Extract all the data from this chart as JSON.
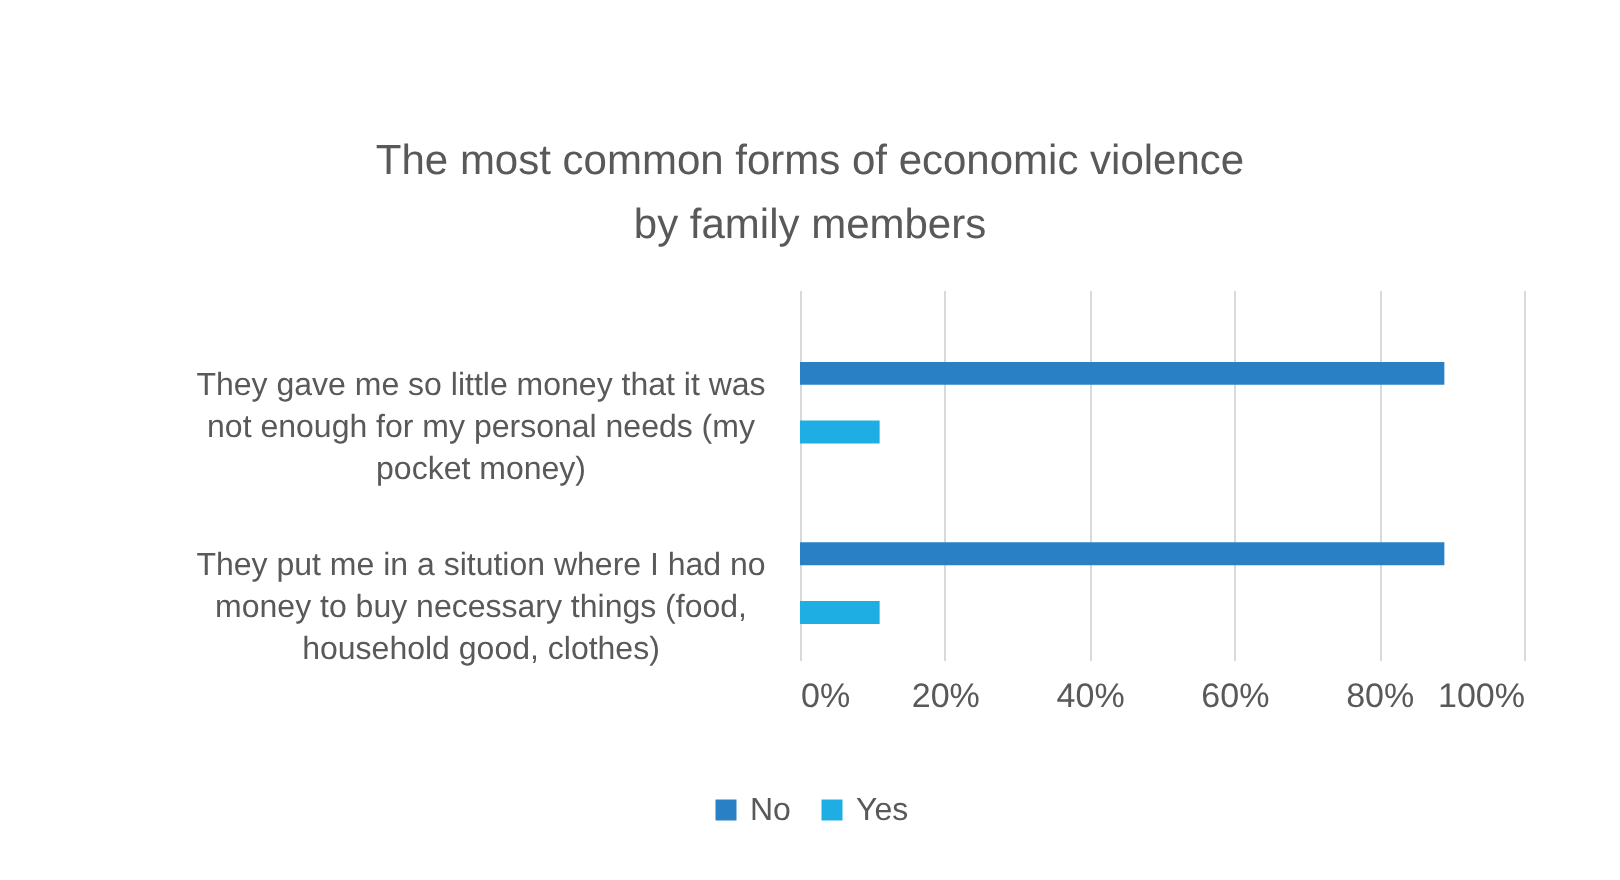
{
  "chart_data": {
    "type": "bar",
    "orientation": "horizontal",
    "title": "The most common forms of economic violence by family members",
    "categories": [
      "They gave me so little money that it was not enough for my personal needs (my pocket money)",
      "They put me in a sitution where I had no money to buy necessary things (food, household good, clothes)"
    ],
    "series": [
      {
        "name": "No",
        "color": "#2980c4",
        "values": [
          89,
          89
        ]
      },
      {
        "name": "Yes",
        "color": "#1eaee3",
        "values": [
          11,
          11
        ]
      }
    ],
    "xlim": [
      0,
      100
    ],
    "xticks": [
      {
        "value": 0,
        "label": "0%"
      },
      {
        "value": 20,
        "label": "20%"
      },
      {
        "value": 40,
        "label": "40%"
      },
      {
        "value": 60,
        "label": "60%"
      },
      {
        "value": 80,
        "label": "80%"
      },
      {
        "value": 100,
        "label": "100%"
      }
    ],
    "grid": "x",
    "legend": "bottom"
  }
}
